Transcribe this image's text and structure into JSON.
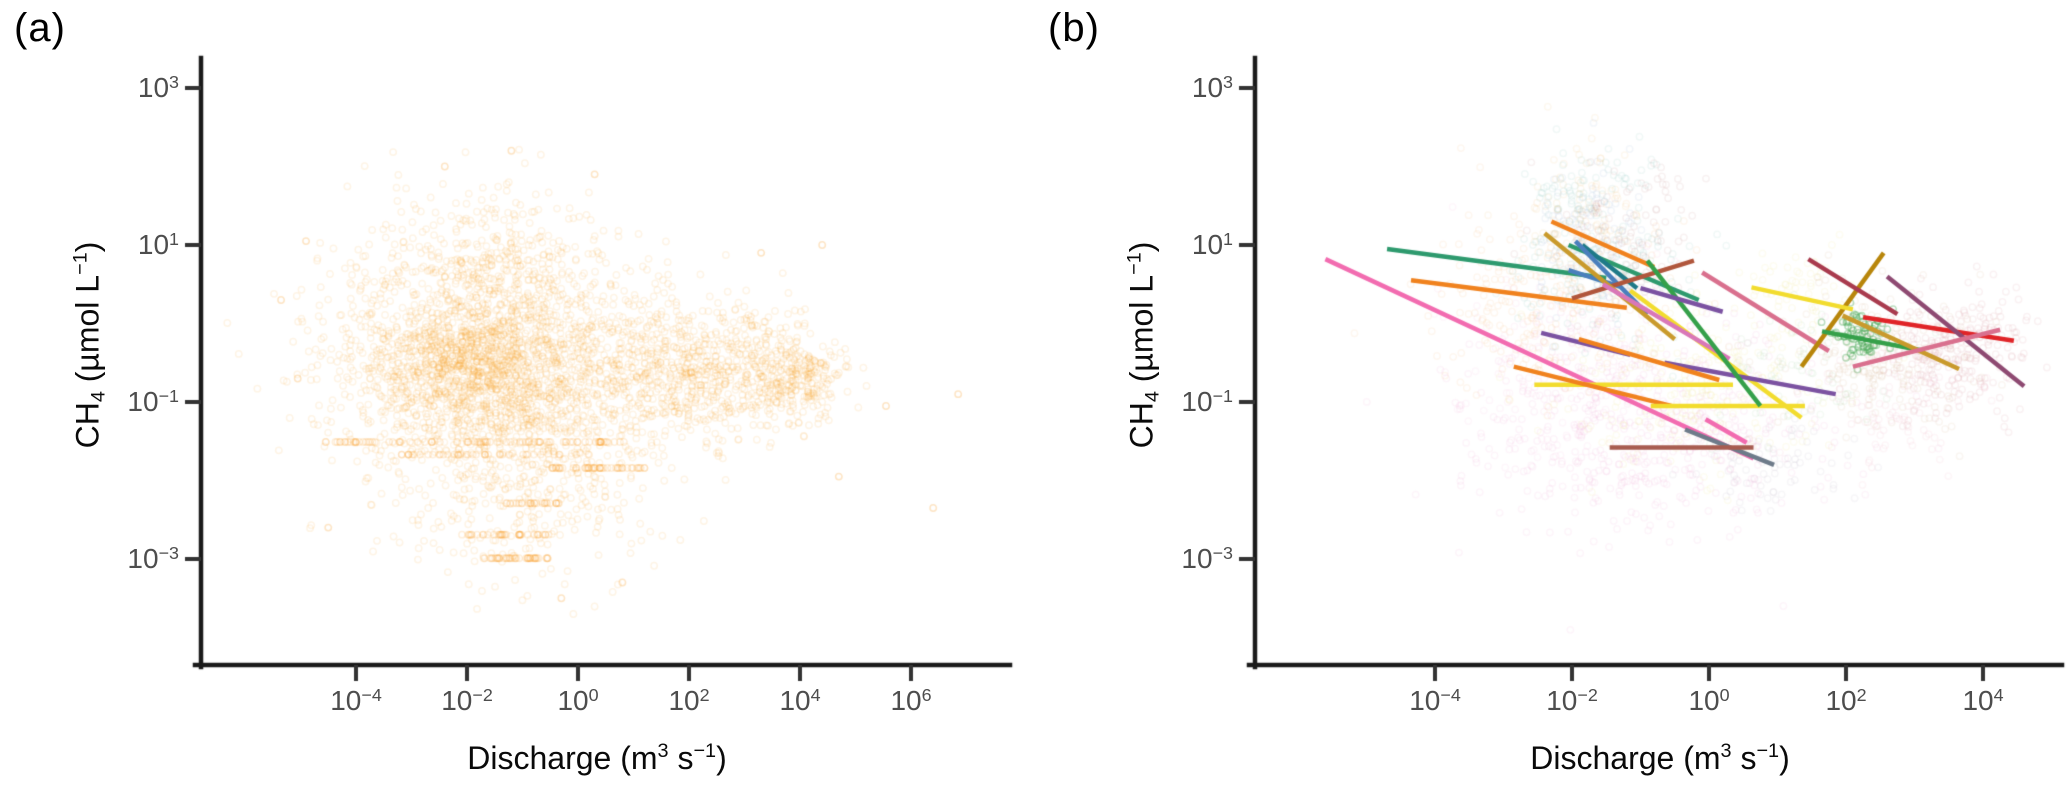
{
  "figure": {
    "background": "#ffffff",
    "panels": [
      {
        "label": "(a)",
        "x_axis_title": {
          "t1": "Discharge (m",
          "sup1": "3",
          "t2": " s",
          "sup2": "−1",
          "t3": ")"
        },
        "y_axis_title": {
          "t1": "CH",
          "sub": "4",
          "t2": " (µmol L",
          "sup": "−1",
          "t3": ")"
        }
      },
      {
        "label": "(b)",
        "x_axis_title": {
          "t1": "Discharge (m",
          "sup1": "3",
          "t2": " s",
          "sup2": "−1",
          "t3": ")"
        },
        "y_axis_title": {
          "t1": "CH",
          "sub": "4",
          "t2": " (µmol L",
          "sup": "−1",
          "t3": ")"
        }
      }
    ]
  },
  "chart_data": [
    {
      "type": "scatter",
      "panel": "a",
      "xlabel": "Discharge (m3 s-1)",
      "ylabel": "CH4 (umol L-1)",
      "x_scale": "log10",
      "y_scale": "log10",
      "x_ticks": [
        {
          "base": "10",
          "exp": "−4",
          "value": 0.0001
        },
        {
          "base": "10",
          "exp": "−2",
          "value": 0.01
        },
        {
          "base": "10",
          "exp": "0",
          "value": 1
        },
        {
          "base": "10",
          "exp": "2",
          "value": 100
        },
        {
          "base": "10",
          "exp": "4",
          "value": 10000
        },
        {
          "base": "10",
          "exp": "6",
          "value": 1000000
        }
      ],
      "y_ticks": [
        {
          "base": "10",
          "exp": "3",
          "value": 1000
        },
        {
          "base": "10",
          "exp": "1",
          "value": 10
        },
        {
          "base": "10",
          "exp": "−1",
          "value": 0.1
        },
        {
          "base": "10",
          "exp": "−3",
          "value": 0.001
        }
      ],
      "x_range_log10": [
        -6.9,
        7.8
      ],
      "y_range_log10": [
        -4.4,
        3.4
      ],
      "grid": false,
      "legend": "none",
      "point_style": {
        "shape": "open-circle",
        "color": "#F8981D",
        "alpha": 0.11,
        "radius": 3.2,
        "stroke_width": 1.5
      },
      "seed": 42,
      "clusters": [
        {
          "cx": -1.4,
          "cy": -0.45,
          "sx": 1.5,
          "sy": 0.75,
          "n": 1400
        },
        {
          "cx": -1.7,
          "cy": -0.6,
          "sx": 0.85,
          "sy": 0.5,
          "n": 800
        },
        {
          "cx": -1.6,
          "cy": 0.85,
          "sx": 1.0,
          "sy": 0.5,
          "n": 240
        },
        {
          "cx": -3.6,
          "cy": -0.25,
          "sx": 0.7,
          "sy": 0.85,
          "n": 170
        },
        {
          "cx": 1.5,
          "cy": -0.7,
          "sx": 0.9,
          "sy": 0.45,
          "n": 420
        },
        {
          "cx": 2.6,
          "cy": -0.55,
          "sx": 0.6,
          "sy": 0.45,
          "n": 260
        },
        {
          "cx": 3.95,
          "cy": -0.7,
          "sx": 0.42,
          "sy": 0.3,
          "n": 300
        },
        {
          "cx": -0.9,
          "cy": -2.25,
          "sx": 1.1,
          "sy": 0.5,
          "n": 240
        }
      ],
      "repeated_value_rows": [
        {
          "y": -1.51,
          "x_min": -4.6,
          "x_max": 0.9,
          "n": 85
        },
        {
          "y": -1.67,
          "x_min": -3.2,
          "x_max": 0.2,
          "n": 40
        },
        {
          "y": -1.84,
          "x_min": -0.5,
          "x_max": 1.2,
          "n": 45
        },
        {
          "y": -2.29,
          "x_min": -1.3,
          "x_max": -0.3,
          "n": 25
        },
        {
          "y": -2.69,
          "x_min": -2.1,
          "x_max": -0.4,
          "n": 35
        },
        {
          "y": -2.99,
          "x_min": -1.7,
          "x_max": -0.5,
          "n": 40
        }
      ],
      "outliers": [
        [
          -5.35,
          0.3
        ],
        [
          -5.05,
          -0.7
        ],
        [
          -4.9,
          1.05
        ],
        [
          6.4,
          -2.35
        ],
        [
          5.55,
          -1.05
        ],
        [
          6.85,
          -0.9
        ],
        [
          4.7,
          -1.95
        ],
        [
          4.4,
          1.0
        ],
        [
          0.3,
          1.9
        ],
        [
          -1.2,
          2.2
        ],
        [
          -2.4,
          2.0
        ],
        [
          3.3,
          0.9
        ],
        [
          -4.5,
          -2.6
        ],
        [
          0.8,
          -3.3
        ],
        [
          -0.3,
          -3.5
        ]
      ]
    },
    {
      "type": "scatter-with-trendlines",
      "panel": "b",
      "xlabel": "Discharge (m3 s-1)",
      "ylabel": "CH4 (umol L-1)",
      "x_scale": "log10",
      "y_scale": "log10",
      "x_ticks": [
        {
          "base": "10",
          "exp": "−4",
          "value": 0.0001
        },
        {
          "base": "10",
          "exp": "−2",
          "value": 0.01
        },
        {
          "base": "10",
          "exp": "0",
          "value": 1
        },
        {
          "base": "10",
          "exp": "2",
          "value": 100
        },
        {
          "base": "10",
          "exp": "4",
          "value": 10000
        }
      ],
      "y_ticks": [
        {
          "base": "10",
          "exp": "3",
          "value": 1000
        },
        {
          "base": "10",
          "exp": "1",
          "value": 10
        },
        {
          "base": "10",
          "exp": "−1",
          "value": 0.1
        },
        {
          "base": "10",
          "exp": "−3",
          "value": 0.001
        }
      ],
      "x_range_log10": [
        -6.6,
        5.2
      ],
      "y_range_log10": [
        -4.4,
        3.4
      ],
      "grid": false,
      "legend": "none",
      "point_style": {
        "shape": "open-circle",
        "alpha": 0.09,
        "radius": 3.2,
        "stroke_width": 1.5
      },
      "seed": 7,
      "groups": [
        {
          "name": "pink",
          "color": "#ED8FC7",
          "cx": -0.9,
          "cy": -1.25,
          "sx": 1.3,
          "sy": 0.7,
          "n": 550
        },
        {
          "name": "pink-upper",
          "color": "#F0A6D0",
          "cx": -2.2,
          "cy": -0.5,
          "sx": 0.8,
          "sy": 0.6,
          "n": 150
        },
        {
          "name": "orange",
          "color": "#F2A25C",
          "cx": -2.3,
          "cy": 0.35,
          "sx": 0.8,
          "sy": 0.6,
          "n": 260
        },
        {
          "name": "amber-top",
          "color": "#EDB45C",
          "cx": -1.8,
          "cy": 1.6,
          "sx": 0.45,
          "sy": 0.35,
          "n": 70
        },
        {
          "name": "teal",
          "color": "#69AFAA",
          "cx": -1.6,
          "cy": 0.75,
          "sx": 0.6,
          "sy": 0.5,
          "n": 160
        },
        {
          "name": "teal-top",
          "color": "#69AFAA",
          "cx": -1.7,
          "cy": 1.8,
          "sx": 0.4,
          "sy": 0.3,
          "n": 50
        },
        {
          "name": "steelblue",
          "color": "#7A9CC8",
          "cx": -1.75,
          "cy": 1.15,
          "sx": 0.45,
          "sy": 0.45,
          "n": 90
        },
        {
          "name": "darkred-top",
          "color": "#B5706B",
          "cx": -1.2,
          "cy": 0.95,
          "sx": 0.5,
          "sy": 0.5,
          "n": 110
        },
        {
          "name": "darkred-high",
          "color": "#B5706B",
          "cx": -0.55,
          "cy": 1.8,
          "sx": 0.15,
          "sy": 0.15,
          "n": 10
        },
        {
          "name": "yellow",
          "color": "#EDDC6B",
          "cx": -0.2,
          "cy": -0.8,
          "sx": 0.9,
          "sy": 0.5,
          "n": 240
        },
        {
          "name": "yellow-right",
          "color": "#EDDC6B",
          "cx": 1.3,
          "cy": 0.45,
          "sx": 0.5,
          "sy": 0.3,
          "n": 60
        },
        {
          "name": "tan",
          "color": "#C7A06B",
          "cx": 2.6,
          "cy": -0.5,
          "sx": 0.7,
          "sy": 0.45,
          "n": 200
        },
        {
          "name": "darkred-right",
          "color": "#C4707E",
          "cx": 3.6,
          "cy": -0.35,
          "sx": 0.5,
          "sy": 0.4,
          "n": 240
        },
        {
          "name": "green-dense",
          "color": "#3FA34D",
          "cx": 2.2,
          "cy": -0.15,
          "sx": 0.2,
          "sy": 0.15,
          "n": 80,
          "alpha": 0.35
        },
        {
          "name": "green-faint",
          "color": "#8CC98C",
          "cx": 1.3,
          "cy": -0.55,
          "sx": 0.7,
          "sy": 0.4,
          "n": 80
        },
        {
          "name": "gray-purple",
          "color": "#A59BB0",
          "cx": 0.9,
          "cy": -1.85,
          "sx": 0.55,
          "sy": 0.3,
          "n": 70
        },
        {
          "name": "rose-bottom",
          "color": "#E8A0B4",
          "cx": 2.8,
          "cy": -1.1,
          "sx": 0.6,
          "sy": 0.4,
          "n": 80
        }
      ],
      "trend_lines": [
        {
          "color": "#F26CB0",
          "x1": -5.6,
          "y1": 0.82,
          "x2": 0.65,
          "y2": -1.72
        },
        {
          "color": "#2E9A6E",
          "x1": -4.7,
          "y1": 0.95,
          "x2": -1.5,
          "y2": 0.58
        },
        {
          "color": "#F0821E",
          "x1": -4.35,
          "y1": 0.55,
          "x2": -1.2,
          "y2": 0.2
        },
        {
          "color": "#2E9A6E",
          "x1": -2.05,
          "y1": 1.0,
          "x2": -0.15,
          "y2": 0.3
        },
        {
          "color": "#F0821E",
          "x1": -2.3,
          "y1": 1.3,
          "x2": -0.8,
          "y2": 0.72
        },
        {
          "color": "#1F7A88",
          "x1": -1.85,
          "y1": 1.0,
          "x2": -1.05,
          "y2": 0.45
        },
        {
          "color": "#4A7FBC",
          "x1": -1.95,
          "y1": 1.05,
          "x2": -0.9,
          "y2": 0.12
        },
        {
          "color": "#4A7FBC",
          "x1": -2.05,
          "y1": 0.68,
          "x2": -1.3,
          "y2": 0.47
        },
        {
          "color": "#B0563C",
          "x1": -2.0,
          "y1": 0.32,
          "x2": -0.22,
          "y2": 0.8
        },
        {
          "color": "#C99A2C",
          "x1": -2.4,
          "y1": 1.15,
          "x2": -0.5,
          "y2": -0.2
        },
        {
          "color": "#F2DC2E",
          "x1": -2.55,
          "y1": -0.78,
          "x2": 0.35,
          "y2": -0.78
        },
        {
          "color": "#F2DC2E",
          "x1": -1.15,
          "y1": 0.42,
          "x2": 1.35,
          "y2": -1.2
        },
        {
          "color": "#7B52A1",
          "x1": -2.45,
          "y1": -0.12,
          "x2": -1.15,
          "y2": -0.4
        },
        {
          "color": "#7B52A1",
          "x1": -0.65,
          "y1": -0.5,
          "x2": 1.85,
          "y2": -0.9
        },
        {
          "color": "#D977B8",
          "x1": -1.55,
          "y1": 0.5,
          "x2": 0.3,
          "y2": -0.45
        },
        {
          "color": "#6E7B8A",
          "x1": -0.35,
          "y1": -1.35,
          "x2": 0.95,
          "y2": -1.8
        },
        {
          "color": "#A85C50",
          "x1": -1.45,
          "y1": -1.58,
          "x2": 0.65,
          "y2": -1.58
        },
        {
          "color": "#D9708E",
          "x1": -0.1,
          "y1": 0.65,
          "x2": 1.75,
          "y2": -0.35
        },
        {
          "color": "#E02428",
          "x1": 2.25,
          "y1": 0.08,
          "x2": 4.45,
          "y2": -0.22
        },
        {
          "color": "#8E4A72",
          "x1": 2.6,
          "y1": 0.6,
          "x2": 4.6,
          "y2": -0.8
        },
        {
          "color": "#B8860B",
          "x1": 1.35,
          "y1": -0.55,
          "x2": 2.55,
          "y2": 0.9
        },
        {
          "color": "#35A04A",
          "x1": 1.65,
          "y1": -0.1,
          "x2": 3.15,
          "y2": -0.35
        },
        {
          "color": "#A93B4E",
          "x1": 1.45,
          "y1": 0.82,
          "x2": 2.75,
          "y2": 0.12
        },
        {
          "color": "#C99A2C",
          "x1": 1.95,
          "y1": 0.1,
          "x2": 3.65,
          "y2": -0.58
        },
        {
          "color": "#D9708E",
          "x1": 2.1,
          "y1": -0.55,
          "x2": 4.25,
          "y2": -0.08
        },
        {
          "color": "#F0821E",
          "x1": -2.85,
          "y1": -0.55,
          "x2": -0.55,
          "y2": -1.05
        },
        {
          "color": "#F2DC2E",
          "x1": 0.62,
          "y1": 0.46,
          "x2": 2.1,
          "y2": 0.18
        },
        {
          "color": "#F2DC2E",
          "x1": -0.85,
          "y1": -1.05,
          "x2": 1.4,
          "y2": -1.05
        },
        {
          "color": "#35A04A",
          "x1": -0.9,
          "y1": 0.8,
          "x2": 0.75,
          "y2": -1.05
        },
        {
          "color": "#7B52A1",
          "x1": -1.0,
          "y1": 0.45,
          "x2": 0.2,
          "y2": 0.15
        },
        {
          "color": "#F26CB0",
          "x1": -0.05,
          "y1": -1.22,
          "x2": 0.55,
          "y2": -1.52
        },
        {
          "color": "#F0821E",
          "x1": -1.9,
          "y1": -0.2,
          "x2": 0.15,
          "y2": -0.72
        }
      ]
    }
  ]
}
